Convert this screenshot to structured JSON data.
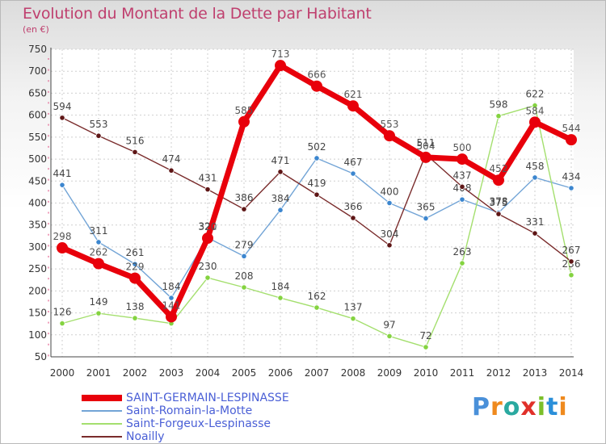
{
  "title": "Evolution du Montant de la Dette par Habitant",
  "unit_label": "(en €)",
  "logo": {
    "text": "Proxiti",
    "letter_colors": [
      "#4a90d9",
      "#ef8a1e",
      "#2aa9a0",
      "#e0302a",
      "#7bbf2a",
      "#2a8fd9",
      "#ef8a1e"
    ]
  },
  "chart_data": {
    "type": "line",
    "title": "Evolution du Montant de la Dette par Habitant",
    "ylabel": "(en €)",
    "xlabel": "",
    "x": [
      "2000",
      "2001",
      "2002",
      "2003",
      "2004",
      "2005",
      "2006",
      "2007",
      "2008",
      "2009",
      "2010",
      "2011",
      "2012",
      "2013",
      "2014"
    ],
    "ylim": [
      50,
      750
    ],
    "yticks": [
      50,
      100,
      150,
      200,
      250,
      300,
      350,
      400,
      450,
      500,
      550,
      600,
      650,
      700,
      750
    ],
    "grid": true,
    "legend_position": "bottom-left",
    "series": [
      {
        "name": "SAINT-GERMAIN-LESPINASSE",
        "color": "#e8000b",
        "marker_color": "#e8000b",
        "label_color": "#555555",
        "emphasis": true,
        "values": [
          298,
          262,
          229,
          141,
          320,
          585,
          713,
          666,
          621,
          553,
          504,
          500,
          452,
          584,
          544
        ],
        "labels": [
          "298",
          "262",
          "229",
          "141",
          "320",
          "585",
          "713",
          "666",
          "621",
          "553",
          "504",
          "500",
          "452",
          "584",
          "544"
        ]
      },
      {
        "name": "Saint-Romain-la-Motte",
        "color": "#72a4d6",
        "marker_color": "#3c86cf",
        "label_color": "#444444",
        "emphasis": false,
        "values": [
          441,
          311,
          261,
          184,
          321,
          279,
          384,
          502,
          467,
          400,
          365,
          408,
          378,
          458,
          434
        ],
        "labels": [
          "441",
          "311",
          "261",
          "184",
          "321",
          "279",
          "384",
          "502",
          "467",
          "400",
          "365",
          "408",
          "378",
          "458",
          "434"
        ]
      },
      {
        "name": "Saint-Forgeux-Lespinasse",
        "color": "#a4df6e",
        "marker_color": "#84d340",
        "label_color": "#444444",
        "emphasis": false,
        "values": [
          126,
          149,
          138,
          126,
          230,
          208,
          184,
          162,
          137,
          97,
          72,
          263,
          598,
          622,
          236
        ],
        "labels": [
          "126",
          "149",
          "138",
          "",
          "230",
          "208",
          "184",
          "162",
          "137",
          "97",
          "72",
          "263",
          "598",
          "622",
          "236"
        ]
      },
      {
        "name": "Noailly",
        "color": "#7a2c2c",
        "marker_color": "#5e1616",
        "label_color": "#444444",
        "emphasis": false,
        "values": [
          594,
          553,
          516,
          474,
          431,
          386,
          471,
          419,
          366,
          304,
          511,
          437,
          375,
          331,
          267
        ],
        "labels": [
          "594",
          "553",
          "516",
          "474",
          "431",
          "386",
          "471",
          "419",
          "366",
          "304",
          "511",
          "437",
          "375",
          "331",
          "267"
        ]
      }
    ]
  }
}
